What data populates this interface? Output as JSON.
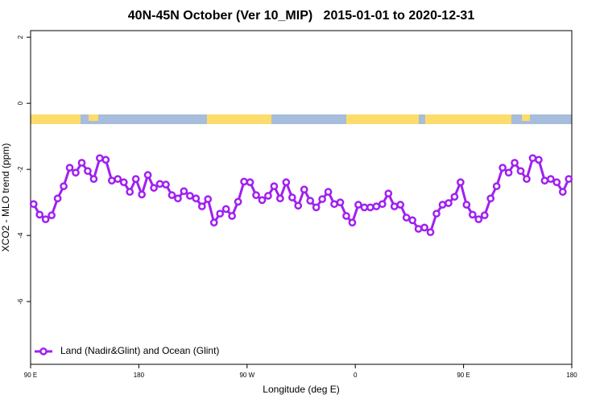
{
  "chart_data": {
    "type": "line",
    "title": "40N-45N October (Ver 10_MIP)   2015-01-01 to 2020-12-31",
    "xlabel": "Longitude (deg E)",
    "ylabel": "XCO2 - MLO trend (ppm)",
    "xlim": [
      90,
      540
    ],
    "ylim": [
      -7.9,
      2.2
    ],
    "xticks": [
      {
        "value": 90,
        "label": "90 E"
      },
      {
        "value": 180,
        "label": "180"
      },
      {
        "value": 270,
        "label": "90 W"
      },
      {
        "value": 360,
        "label": "0"
      },
      {
        "value": 450,
        "label": "90 E"
      },
      {
        "value": 540,
        "label": "180"
      }
    ],
    "yticks": [
      -6,
      -4,
      -2,
      0,
      2
    ],
    "legend": "bottomleft",
    "x": [
      92.5,
      97.5,
      102.5,
      107.5,
      112.5,
      117.5,
      122.5,
      127.5,
      132.5,
      137.5,
      142.5,
      147.5,
      152.5,
      157.5,
      162.5,
      167.5,
      172.5,
      177.5,
      182.5,
      187.5,
      192.5,
      197.5,
      202.5,
      207.5,
      212.5,
      217.5,
      222.5,
      227.5,
      232.5,
      237.5,
      242.5,
      247.5,
      252.5,
      257.5,
      262.5,
      267.5,
      272.5,
      277.5,
      282.5,
      287.5,
      292.5,
      297.5,
      302.5,
      307.5,
      312.5,
      317.5,
      322.5,
      327.5,
      332.5,
      337.5,
      342.5,
      347.5,
      352.5,
      357.5,
      362.5,
      367.5,
      372.5,
      377.5,
      382.5,
      387.5,
      392.5,
      397.5,
      402.5,
      407.5,
      412.5,
      417.5,
      422.5,
      427.5,
      432.5,
      437.5,
      442.5,
      447.5,
      452.5,
      457.5,
      462.5,
      467.5,
      472.5,
      477.5,
      482.5,
      487.5,
      492.5,
      497.5,
      502.5,
      507.5,
      512.5,
      517.5,
      522.5,
      527.5,
      532.5,
      537.5
    ],
    "series": [
      {
        "name": "Land (Nadir&Glint) and Ocean (Glint)",
        "color": "#a020f0",
        "values": [
          -3.05,
          -3.37,
          -3.51,
          -3.39,
          -2.88,
          -2.51,
          -1.95,
          -2.1,
          -1.8,
          -2.05,
          -2.29,
          -1.66,
          -1.71,
          -2.34,
          -2.29,
          -2.39,
          -2.68,
          -2.29,
          -2.76,
          -2.17,
          -2.56,
          -2.44,
          -2.46,
          -2.78,
          -2.88,
          -2.66,
          -2.8,
          -2.88,
          -3.12,
          -2.9,
          -3.61,
          -3.34,
          -3.2,
          -3.41,
          -2.98,
          -2.37,
          -2.39,
          -2.78,
          -2.93,
          -2.8,
          -2.51,
          -2.88,
          -2.39,
          -2.85,
          -3.1,
          -2.61,
          -2.95,
          -3.15,
          -2.9,
          -2.68,
          -3.05,
          -3.0,
          -3.41,
          -3.61,
          -3.07,
          -3.15,
          -3.15,
          -3.12,
          -3.05,
          -2.73,
          -3.12,
          -3.07,
          -3.46,
          -3.54,
          -3.8,
          -3.76,
          -3.9,
          -3.34,
          -3.07,
          -3.02,
          -2.83,
          -2.39,
          -3.07,
          -3.37,
          -3.51,
          -3.39,
          -2.88,
          -2.51,
          -1.95,
          -2.1,
          -1.8,
          -2.05,
          -2.29,
          -1.66,
          -1.71,
          -2.34,
          -2.29,
          -2.39,
          -2.68,
          -2.29
        ]
      }
    ]
  }
}
